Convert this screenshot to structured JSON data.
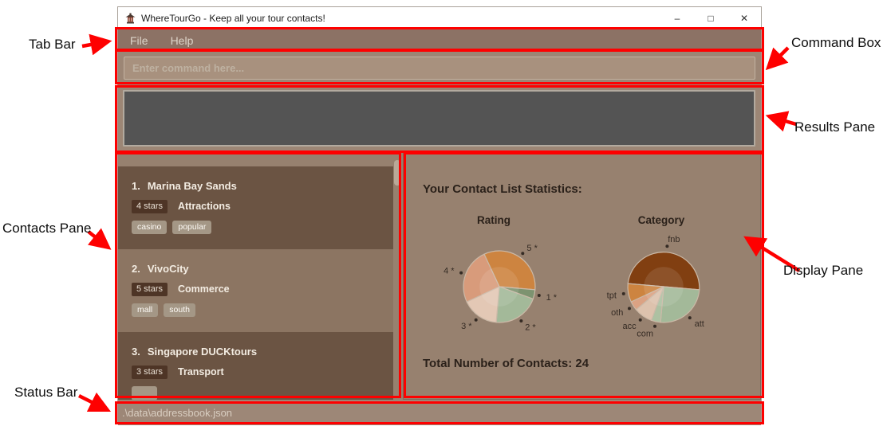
{
  "annotations": {
    "tab_bar": "Tab Bar",
    "command_box": "Command Box",
    "results_pane": "Results Pane",
    "contacts_pane": "Contacts Pane",
    "display_pane": "Display Pane",
    "status_bar": "Status Bar",
    "highlight_color": "#fe0000"
  },
  "window": {
    "title": "WhereTourGo - Keep all your tour contacts!",
    "controls": {
      "minimize": "–",
      "maximize": "□",
      "close": "✕"
    },
    "menu": [
      "File",
      "Help"
    ],
    "command_placeholder": "Enter command here...",
    "status_text": ".\\data\\addressbook.json"
  },
  "contacts": [
    {
      "index": "1.",
      "name": "Marina Bay Sands",
      "rating": "4 stars",
      "category": "Attractions",
      "tags": [
        "casino",
        "popular"
      ],
      "partial_tag": false
    },
    {
      "index": "2.",
      "name": "VivoCity",
      "rating": "5 stars",
      "category": "Commerce",
      "tags": [
        "mall",
        "south"
      ],
      "partial_tag": false
    },
    {
      "index": "3.",
      "name": "Singapore DUCKtours",
      "rating": "3 stars",
      "category": "Transport",
      "tags": [],
      "partial_tag": true
    }
  ],
  "display": {
    "stats_title": "Your Contact List Statistics:",
    "total_text": "Total Number of Contacts: 24",
    "total_contacts": 24
  },
  "chart_data": [
    {
      "type": "pie",
      "title": "Rating",
      "start_angle": -25,
      "legend": "none",
      "slices": [
        {
          "label": "5 *",
          "value": 8,
          "color": "#cd8440"
        },
        {
          "label": "1 *",
          "value": 1,
          "color": "#7d9370"
        },
        {
          "label": "2 *",
          "value": 5,
          "color": "#a3b999"
        },
        {
          "label": "3 *",
          "value": 4,
          "color": "#e3c8b5"
        },
        {
          "label": "4 *",
          "value": 6,
          "color": "#d89b7b"
        }
      ]
    },
    {
      "type": "pie",
      "title": "Category",
      "start_angle": -85,
      "legend": "none",
      "slices": [
        {
          "label": "fnb",
          "value": 12,
          "color": "#813f11"
        },
        {
          "label": "att",
          "value": 6,
          "color": "#a3b999"
        },
        {
          "label": "com",
          "value": 1,
          "color": "#adc1a2"
        },
        {
          "label": "acc",
          "value": 2,
          "color": "#ddc2ad"
        },
        {
          "label": "oth",
          "value": 1,
          "color": "#dba283"
        },
        {
          "label": "tpt",
          "value": 2,
          "color": "#cd8440"
        }
      ]
    }
  ],
  "theme": {
    "menubar": "#8c7265",
    "frame": "#9c8675",
    "results_bg": "#545454",
    "pane_bg": "#97816f",
    "card_dark": "#6b5443",
    "card_light": "#8c7562",
    "badge": "#4e3526",
    "chip": "#a49786"
  }
}
